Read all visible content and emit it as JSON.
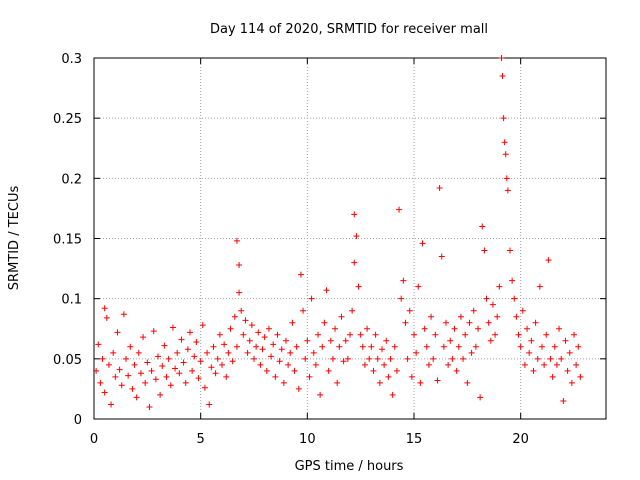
{
  "chart_data": {
    "type": "scatter",
    "title": "Day 114 of 2020, SRMTID for receiver mall",
    "xlabel": "GPS time / hours",
    "ylabel": "SRMTID / TECUs",
    "xlim": [
      0,
      24
    ],
    "ylim": [
      0,
      0.3
    ],
    "x_ticks": [
      0,
      5,
      10,
      15,
      20
    ],
    "x_tick_labels": [
      "0",
      "5",
      "10",
      "15",
      "20"
    ],
    "y_ticks": [
      0,
      0.05,
      0.1,
      0.15,
      0.2,
      0.25,
      0.3
    ],
    "y_tick_labels": [
      "0",
      "0.05",
      "0.1",
      "0.15",
      "0.2",
      "0.25",
      "0.3"
    ],
    "grid": true,
    "marker": "plus",
    "marker_color": "#ff0000",
    "series": [
      {
        "name": "SRMTID",
        "points": [
          [
            0.1,
            0.04
          ],
          [
            0.2,
            0.062
          ],
          [
            0.3,
            0.03
          ],
          [
            0.4,
            0.05
          ],
          [
            0.5,
            0.022
          ],
          [
            0.5,
            0.092
          ],
          [
            0.6,
            0.084
          ],
          [
            0.7,
            0.045
          ],
          [
            0.8,
            0.012
          ],
          [
            0.9,
            0.055
          ],
          [
            1.0,
            0.035
          ],
          [
            1.1,
            0.072
          ],
          [
            1.2,
            0.041
          ],
          [
            1.3,
            0.028
          ],
          [
            1.4,
            0.087
          ],
          [
            1.5,
            0.05
          ],
          [
            1.6,
            0.036
          ],
          [
            1.7,
            0.06
          ],
          [
            1.8,
            0.025
          ],
          [
            1.9,
            0.045
          ],
          [
            2.0,
            0.018
          ],
          [
            2.1,
            0.055
          ],
          [
            2.2,
            0.038
          ],
          [
            2.3,
            0.068
          ],
          [
            2.4,
            0.03
          ],
          [
            2.5,
            0.047
          ],
          [
            2.6,
            0.01
          ],
          [
            2.7,
            0.04
          ],
          [
            2.8,
            0.073
          ],
          [
            2.9,
            0.033
          ],
          [
            3.0,
            0.052
          ],
          [
            3.1,
            0.02
          ],
          [
            3.2,
            0.044
          ],
          [
            3.3,
            0.061
          ],
          [
            3.4,
            0.035
          ],
          [
            3.5,
            0.05
          ],
          [
            3.6,
            0.028
          ],
          [
            3.7,
            0.076
          ],
          [
            3.8,
            0.042
          ],
          [
            3.9,
            0.055
          ],
          [
            4.0,
            0.038
          ],
          [
            4.1,
            0.066
          ],
          [
            4.2,
            0.047
          ],
          [
            4.3,
            0.03
          ],
          [
            4.4,
            0.058
          ],
          [
            4.5,
            0.072
          ],
          [
            4.6,
            0.04
          ],
          [
            4.7,
            0.052
          ],
          [
            4.8,
            0.064
          ],
          [
            4.9,
            0.034
          ],
          [
            5.0,
            0.048
          ],
          [
            5.1,
            0.078
          ],
          [
            5.2,
            0.026
          ],
          [
            5.3,
            0.055
          ],
          [
            5.4,
            0.012
          ],
          [
            5.5,
            0.043
          ],
          [
            5.6,
            0.06
          ],
          [
            5.7,
            0.038
          ],
          [
            5.8,
            0.05
          ],
          [
            5.9,
            0.07
          ],
          [
            6.0,
            0.045
          ],
          [
            6.1,
            0.062
          ],
          [
            6.2,
            0.035
          ],
          [
            6.3,
            0.055
          ],
          [
            6.4,
            0.075
          ],
          [
            6.5,
            0.048
          ],
          [
            6.6,
            0.085
          ],
          [
            6.7,
            0.06
          ],
          [
            6.7,
            0.148
          ],
          [
            6.8,
            0.128
          ],
          [
            6.8,
            0.105
          ],
          [
            6.9,
            0.09
          ],
          [
            7.0,
            0.07
          ],
          [
            7.1,
            0.082
          ],
          [
            7.2,
            0.055
          ],
          [
            7.3,
            0.065
          ],
          [
            7.4,
            0.078
          ],
          [
            7.5,
            0.05
          ],
          [
            7.6,
            0.06
          ],
          [
            7.7,
            0.072
          ],
          [
            7.8,
            0.045
          ],
          [
            7.9,
            0.058
          ],
          [
            8.0,
            0.068
          ],
          [
            8.1,
            0.04
          ],
          [
            8.2,
            0.075
          ],
          [
            8.3,
            0.052
          ],
          [
            8.4,
            0.062
          ],
          [
            8.5,
            0.035
          ],
          [
            8.6,
            0.07
          ],
          [
            8.7,
            0.048
          ],
          [
            8.8,
            0.058
          ],
          [
            8.9,
            0.03
          ],
          [
            9.0,
            0.065
          ],
          [
            9.1,
            0.045
          ],
          [
            9.2,
            0.055
          ],
          [
            9.3,
            0.08
          ],
          [
            9.4,
            0.04
          ],
          [
            9.5,
            0.06
          ],
          [
            9.6,
            0.025
          ],
          [
            9.7,
            0.12
          ],
          [
            9.8,
            0.09
          ],
          [
            9.9,
            0.05
          ],
          [
            10.0,
            0.065
          ],
          [
            10.1,
            0.035
          ],
          [
            10.2,
            0.1
          ],
          [
            10.3,
            0.055
          ],
          [
            10.4,
            0.045
          ],
          [
            10.5,
            0.07
          ],
          [
            10.6,
            0.02
          ],
          [
            10.7,
            0.06
          ],
          [
            10.8,
            0.08
          ],
          [
            10.9,
            0.107
          ],
          [
            11.0,
            0.04
          ],
          [
            11.1,
            0.065
          ],
          [
            11.2,
            0.05
          ],
          [
            11.3,
            0.075
          ],
          [
            11.4,
            0.03
          ],
          [
            11.5,
            0.06
          ],
          [
            11.6,
            0.085
          ],
          [
            11.7,
            0.048
          ],
          [
            11.8,
            0.065
          ],
          [
            11.9,
            0.05
          ],
          [
            12.0,
            0.07
          ],
          [
            12.1,
            0.09
          ],
          [
            12.2,
            0.17
          ],
          [
            12.2,
            0.13
          ],
          [
            12.3,
            0.152
          ],
          [
            12.4,
            0.11
          ],
          [
            12.5,
            0.07
          ],
          [
            12.6,
            0.06
          ],
          [
            12.7,
            0.045
          ],
          [
            12.8,
            0.075
          ],
          [
            12.9,
            0.05
          ],
          [
            13.0,
            0.06
          ],
          [
            13.1,
            0.04
          ],
          [
            13.2,
            0.07
          ],
          [
            13.3,
            0.05
          ],
          [
            13.4,
            0.03
          ],
          [
            13.5,
            0.058
          ],
          [
            13.6,
            0.045
          ],
          [
            13.7,
            0.065
          ],
          [
            13.8,
            0.035
          ],
          [
            13.9,
            0.05
          ],
          [
            14.0,
            0.02
          ],
          [
            14.1,
            0.06
          ],
          [
            14.2,
            0.04
          ],
          [
            14.3,
            0.174
          ],
          [
            14.4,
            0.1
          ],
          [
            14.5,
            0.115
          ],
          [
            14.6,
            0.08
          ],
          [
            14.7,
            0.05
          ],
          [
            14.8,
            0.09
          ],
          [
            14.9,
            0.035
          ],
          [
            15.0,
            0.07
          ],
          [
            15.1,
            0.055
          ],
          [
            15.2,
            0.11
          ],
          [
            15.3,
            0.03
          ],
          [
            15.4,
            0.146
          ],
          [
            15.5,
            0.075
          ],
          [
            15.6,
            0.06
          ],
          [
            15.7,
            0.045
          ],
          [
            15.8,
            0.085
          ],
          [
            15.9,
            0.05
          ],
          [
            16.0,
            0.07
          ],
          [
            16.1,
            0.032
          ],
          [
            16.2,
            0.192
          ],
          [
            16.3,
            0.135
          ],
          [
            16.4,
            0.06
          ],
          [
            16.5,
            0.08
          ],
          [
            16.6,
            0.045
          ],
          [
            16.7,
            0.065
          ],
          [
            16.8,
            0.05
          ],
          [
            16.9,
            0.075
          ],
          [
            17.0,
            0.04
          ],
          [
            17.1,
            0.06
          ],
          [
            17.2,
            0.085
          ],
          [
            17.3,
            0.05
          ],
          [
            17.4,
            0.07
          ],
          [
            17.5,
            0.03
          ],
          [
            17.6,
            0.08
          ],
          [
            17.7,
            0.055
          ],
          [
            17.8,
            0.09
          ],
          [
            17.9,
            0.06
          ],
          [
            18.0,
            0.075
          ],
          [
            18.1,
            0.018
          ],
          [
            18.2,
            0.16
          ],
          [
            18.3,
            0.14
          ],
          [
            18.4,
            0.1
          ],
          [
            18.5,
            0.08
          ],
          [
            18.6,
            0.065
          ],
          [
            18.7,
            0.095
          ],
          [
            18.8,
            0.07
          ],
          [
            18.9,
            0.085
          ],
          [
            19.0,
            0.11
          ],
          [
            19.1,
            0.3
          ],
          [
            19.15,
            0.285
          ],
          [
            19.2,
            0.25
          ],
          [
            19.25,
            0.23
          ],
          [
            19.3,
            0.22
          ],
          [
            19.35,
            0.2
          ],
          [
            19.4,
            0.19
          ],
          [
            19.5,
            0.14
          ],
          [
            19.6,
            0.115
          ],
          [
            19.7,
            0.1
          ],
          [
            19.8,
            0.085
          ],
          [
            19.9,
            0.07
          ],
          [
            20.0,
            0.06
          ],
          [
            20.1,
            0.09
          ],
          [
            20.2,
            0.045
          ],
          [
            20.3,
            0.075
          ],
          [
            20.4,
            0.055
          ],
          [
            20.5,
            0.065
          ],
          [
            20.6,
            0.04
          ],
          [
            20.7,
            0.08
          ],
          [
            20.8,
            0.05
          ],
          [
            20.9,
            0.11
          ],
          [
            21.0,
            0.06
          ],
          [
            21.1,
            0.045
          ],
          [
            21.2,
            0.07
          ],
          [
            21.3,
            0.132
          ],
          [
            21.4,
            0.05
          ],
          [
            21.5,
            0.035
          ],
          [
            21.6,
            0.06
          ],
          [
            21.7,
            0.045
          ],
          [
            21.8,
            0.075
          ],
          [
            21.9,
            0.05
          ],
          [
            22.0,
            0.015
          ],
          [
            22.1,
            0.065
          ],
          [
            22.2,
            0.04
          ],
          [
            22.3,
            0.055
          ],
          [
            22.4,
            0.03
          ],
          [
            22.5,
            0.07
          ],
          [
            22.6,
            0.045
          ],
          [
            22.7,
            0.06
          ],
          [
            22.8,
            0.035
          ]
        ]
      }
    ]
  }
}
